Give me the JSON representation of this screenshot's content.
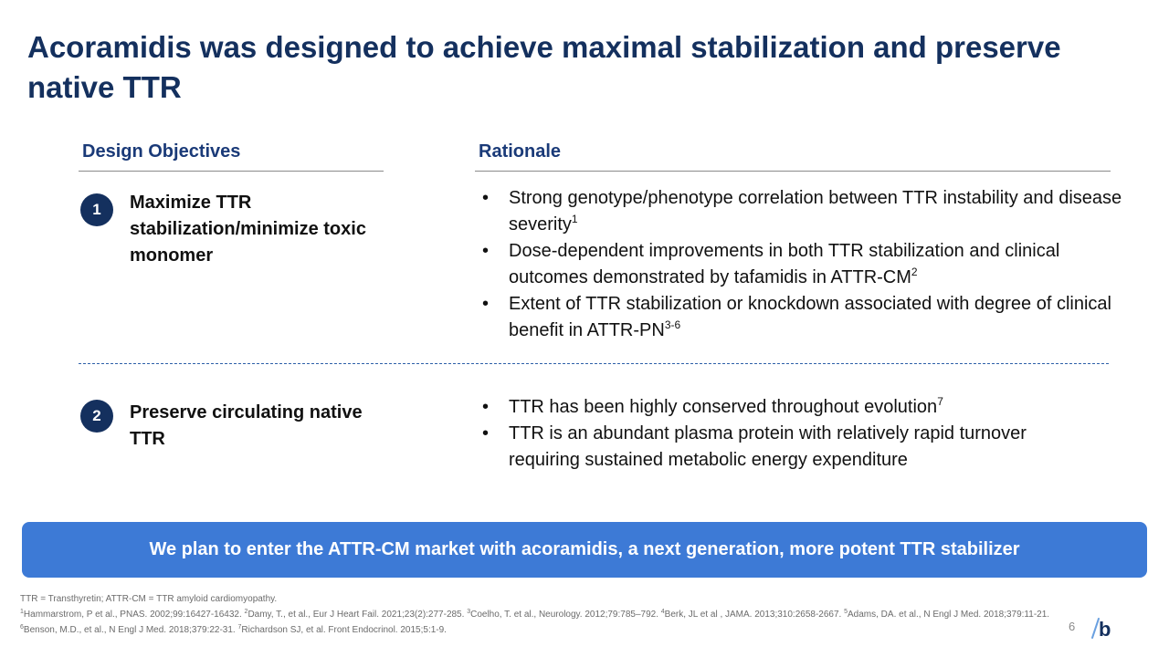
{
  "title": "Acoramidis was designed to achieve maximal stabilization and preserve native TTR",
  "columns": {
    "left_header": "Design Objectives",
    "right_header": "Rationale"
  },
  "objectives": [
    {
      "number": "1",
      "label": "Maximize TTR stabilization/minimize toxic monomer",
      "rationale": [
        {
          "text": "Strong genotype/phenotype correlation between TTR instability and disease severity",
          "sup": "1"
        },
        {
          "text": "Dose-dependent improvements in both TTR stabilization and clinical outcomes demonstrated by tafamidis in ATTR-CM",
          "sup": "2"
        },
        {
          "text": "Extent of TTR stabilization or knockdown associated with degree of clinical benefit in ATTR-PN",
          "sup": "3-6"
        }
      ]
    },
    {
      "number": "2",
      "label": "Preserve circulating native TTR",
      "rationale": [
        {
          "text": "TTR has been highly conserved throughout evolution",
          "sup": "7"
        },
        {
          "text": "TTR is an abundant plasma protein with relatively rapid turnover requiring sustained metabolic energy expenditure",
          "sup": ""
        }
      ]
    }
  ],
  "bullet_char": "•",
  "banner": "We plan to enter the ATTR-CM market with acoramidis, a next generation, more potent TTR stabilizer",
  "footnotes": {
    "abbrev": "TTR = Transthyretin; ATTR-CM  = TTR amyloid cardiomyopathy.",
    "refs": [
      {
        "sup": "1",
        "text": "Hammarstrom, P et al., PNAS. 2002;99:16427-16432. "
      },
      {
        "sup": "2",
        "text": "Damy, T., et al., Eur J Heart Fail. 2021;23(2):277-285. "
      },
      {
        "sup": "3",
        "text": "Coelho, T. et al., Neurology. 2012;79:785–792. "
      },
      {
        "sup": "4",
        "text": "Berk, JL et al , JAMA. 2013;310:2658-2667. "
      },
      {
        "sup": "5",
        "text": "Adams, DA. et al., N Engl J Med. 2018;379:11-21. "
      },
      {
        "sup": "6",
        "text": "Benson, M.D., et al., N Engl J Med. 2018;379:22-31. "
      },
      {
        "sup": "7",
        "text": "Richardson SJ, et al. Front Endocrinol. 2015;5:1-9."
      }
    ]
  },
  "page_number": "6",
  "logo_letter": "b",
  "colors": {
    "title": "#14305e",
    "header": "#1a3a78",
    "badge": "#14305e",
    "banner": "#3d7ad6",
    "logo_slash": "#6aa0e0"
  }
}
